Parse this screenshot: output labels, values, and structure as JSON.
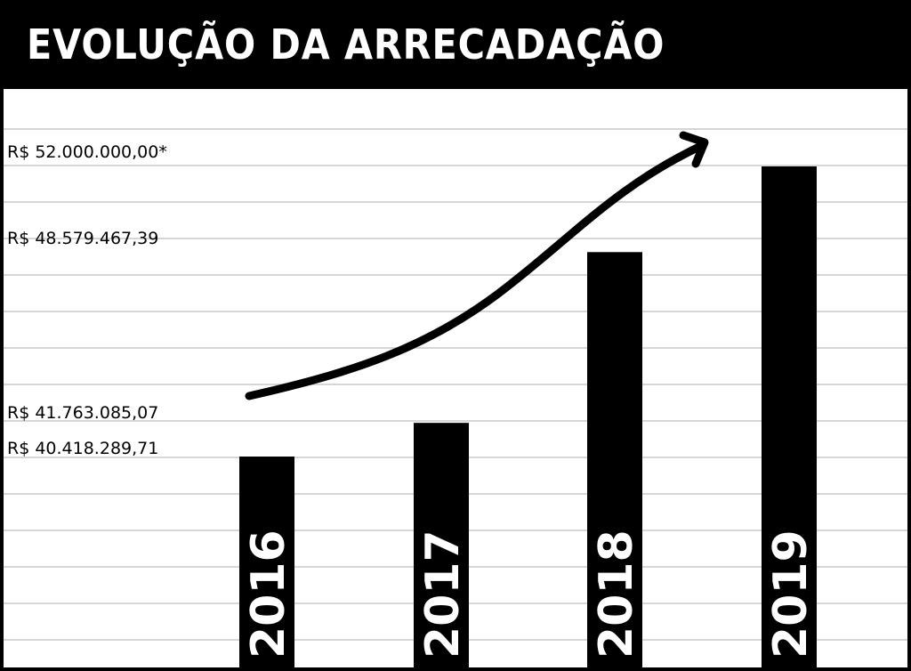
{
  "chart_data": {
    "type": "bar",
    "title": "EVOLUÇÃO DA ARRECADAÇÃO",
    "categories": [
      "2016",
      "2017",
      "2018",
      "2019"
    ],
    "values": [
      40418289.71,
      41763085.07,
      48579467.39,
      52000000.0
    ],
    "value_labels": [
      "R$ 40.418.289,71",
      "R$ 41.763.085,07",
      "R$ 48.579.467,39",
      "R$ 52.000.000,00*"
    ],
    "ylim": [
      32000000,
      53300000
    ],
    "grid": true,
    "annotation": "upward-trend-arrow",
    "colors": {
      "bar": "#000000",
      "background": "#ffffff",
      "grid": "#c8c8c8",
      "header": "#000000",
      "header_text": "#ffffff"
    }
  }
}
